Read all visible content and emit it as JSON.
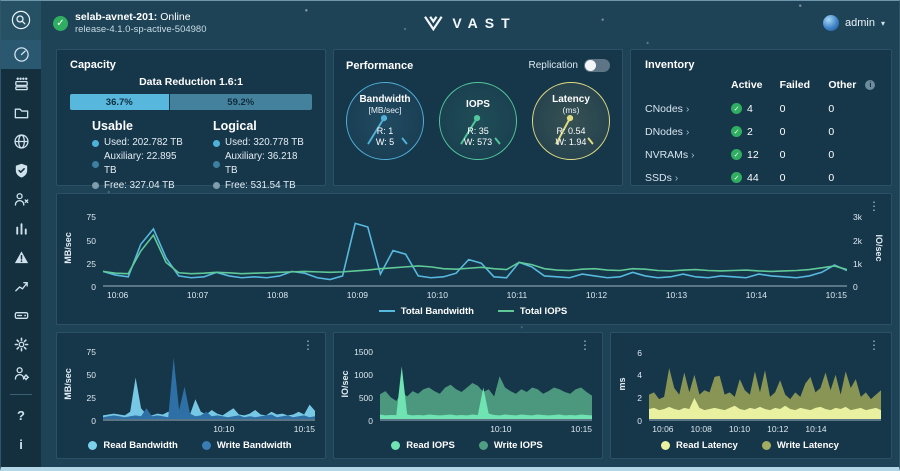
{
  "icons": {
    "kebab": "⋮",
    "caret": "▾",
    "check": "✓",
    "chevron": "›",
    "info": "i",
    "help": "?",
    "about": "i"
  },
  "topbar": {
    "cluster_name": "selab-avnet-201:",
    "cluster_status": "Online",
    "release": "release-4.1.0-sp-active-504980",
    "logo_text": "VAST",
    "user": "admin"
  },
  "capacity": {
    "title": "Capacity",
    "data_reduction_label": "Data Reduction 1.6:1",
    "bar": {
      "left_label": "36.7%",
      "left_value": 36.7,
      "left_color": "#58b7dc",
      "right_label": "59.2%",
      "right_value": 59.2,
      "right_color": "#44819d"
    },
    "usable": {
      "title": "Usable",
      "items": [
        {
          "label": "Used: 202.782 TB",
          "color": "#4fb0d8"
        },
        {
          "label": "Auxiliary: 22.895 TB",
          "color": "#3d7f9e"
        },
        {
          "label": "Free: 327.04 TB",
          "color": "#7e9cab"
        }
      ]
    },
    "logical": {
      "title": "Logical",
      "items": [
        {
          "label": "Used: 320.778 TB",
          "color": "#4fb0d8"
        },
        {
          "label": "Auxiliary: 36.218 TB",
          "color": "#3d7f9e"
        },
        {
          "label": "Free: 531.54 TB",
          "color": "#7e9cab"
        }
      ]
    }
  },
  "performance": {
    "title": "Performance",
    "replication_label": "Replication",
    "replication_state": "off",
    "gauges": [
      {
        "title": "Bandwidth",
        "subtitle": "[MB/sec]",
        "read": "R: 1",
        "write": "W: 5",
        "color": "#4fb0d8"
      },
      {
        "title": "IOPS",
        "subtitle": "",
        "read": "R: 35",
        "write": "W: 573",
        "color": "#52c79b"
      },
      {
        "title": "Latency",
        "subtitle": "(ms)",
        "read": "R: 0.54",
        "write": "W: 1.94",
        "color": "#e0dc82"
      }
    ]
  },
  "inventory": {
    "title": "Inventory",
    "columns": [
      "Active",
      "Failed",
      "Other"
    ],
    "rows": [
      {
        "label": "CNodes",
        "active": "4",
        "failed": "0",
        "other": "0"
      },
      {
        "label": "DNodes",
        "active": "2",
        "failed": "0",
        "other": "0"
      },
      {
        "label": "NVRAMs",
        "active": "12",
        "failed": "0",
        "other": "0"
      },
      {
        "label": "SSDs",
        "active": "44",
        "failed": "0",
        "other": "0"
      }
    ]
  },
  "chart_data": [
    {
      "id": "main",
      "type": "line",
      "title": "Total Bandwidth / Total IOPS over time",
      "ylabel_left": "MB/sec",
      "ylabel_right": "IO/sec",
      "yticks_left": [
        "75",
        "50",
        "25",
        "0"
      ],
      "yticks_right": [
        "3k",
        "2k",
        "1k",
        "0"
      ],
      "ylim_left": [
        0,
        85
      ],
      "ylim_right": [
        0,
        3400
      ],
      "grid": false,
      "legend_position": "bottom",
      "xticks": [
        "10:06",
        "10:07",
        "10:08",
        "10:09",
        "10:10",
        "10:11",
        "10:12",
        "10:13",
        "10:14",
        "10:15"
      ],
      "series": [
        {
          "name": "Total Bandwidth",
          "color": "#56b9dd",
          "axis": "left",
          "values": [
            15,
            11,
            9,
            45,
            62,
            30,
            10,
            8,
            9,
            14,
            10,
            8,
            9,
            8,
            10,
            15,
            13,
            8,
            6,
            10,
            68,
            64,
            12,
            38,
            34,
            10,
            8,
            9,
            13,
            28,
            24,
            9,
            8,
            25,
            20,
            10,
            9,
            8,
            12,
            10,
            8,
            9,
            14,
            10,
            8,
            9,
            12,
            9,
            8,
            10,
            9,
            8,
            12,
            10,
            9,
            8,
            10,
            14,
            22,
            16
          ]
        },
        {
          "name": "Total IOPS",
          "color": "#5fc998",
          "axis": "right",
          "values": [
            600,
            520,
            500,
            1500,
            2200,
            1000,
            540,
            500,
            520,
            560,
            540,
            500,
            520,
            540,
            560,
            580,
            600,
            580,
            560,
            580,
            620,
            660,
            720,
            760,
            800,
            840,
            800,
            720,
            700,
            740,
            780,
            720,
            680,
            1000,
            900,
            720,
            660,
            640,
            700,
            720,
            660,
            640,
            720,
            700,
            640,
            620,
            660,
            680,
            640,
            620,
            640,
            660,
            620,
            600,
            620,
            640,
            680,
            760,
            840,
            680
          ]
        }
      ]
    },
    {
      "id": "bandwidth",
      "type": "area",
      "title": "Read/Write Bandwidth",
      "ylabel": "MB/sec",
      "yticks": [
        "75",
        "50",
        "25",
        "0"
      ],
      "ylim": [
        0,
        80
      ],
      "xticks": [
        {
          "label": "10:10",
          "pos": 57
        },
        {
          "label": "10:15",
          "pos": 95
        }
      ],
      "series": [
        {
          "name": "Read Bandwidth",
          "color": "#7cd1ec",
          "opacity": 0.95,
          "values": [
            4,
            5,
            6,
            5,
            4,
            8,
            46,
            12,
            5,
            4,
            6,
            5,
            8,
            5,
            4,
            6,
            5,
            22,
            8,
            5,
            10,
            6,
            4,
            8,
            12,
            5,
            4,
            6,
            10,
            5,
            4,
            8,
            5,
            6,
            4,
            5,
            8,
            5,
            16,
            9
          ]
        },
        {
          "name": "Write Bandwidth",
          "color": "#2e6fa5",
          "opacity": 1,
          "values": [
            2,
            3,
            4,
            3,
            2,
            3,
            4,
            3,
            12,
            3,
            4,
            3,
            2,
            68,
            10,
            36,
            6,
            3,
            4,
            8,
            3,
            4,
            3,
            2,
            3,
            4,
            2,
            3,
            2,
            3,
            4,
            5,
            2,
            3,
            4,
            2,
            3,
            4,
            2,
            3
          ]
        }
      ]
    },
    {
      "id": "iops",
      "type": "area",
      "title": "Read/Write IOPS",
      "ylabel": "IO/sec",
      "yticks": [
        "1500",
        "1000",
        "500",
        "0"
      ],
      "ylim": [
        0,
        1600
      ],
      "xticks": [
        {
          "label": "10:10",
          "pos": 57
        },
        {
          "label": "10:15",
          "pos": 95
        }
      ],
      "series": [
        {
          "name": "Write IOPS",
          "color": "#4f9e82",
          "opacity": 0.95,
          "values": [
            550,
            620,
            480,
            400,
            600,
            500,
            620,
            560,
            660,
            700,
            620,
            560,
            700,
            760,
            660,
            600,
            700,
            800,
            740,
            600,
            660,
            500,
            950,
            700,
            620,
            560,
            660,
            600,
            700,
            660,
            560,
            620,
            700,
            660,
            600,
            560,
            660,
            700,
            600,
            520
          ]
        },
        {
          "name": "Read IOPS",
          "color": "#6fe3b2",
          "opacity": 1,
          "values": [
            100,
            80,
            90,
            85,
            1170,
            100,
            80,
            90,
            80,
            100,
            90,
            80,
            90,
            100,
            80,
            90,
            80,
            100,
            90,
            700,
            120,
            90,
            80,
            100,
            90,
            80,
            100,
            90,
            80,
            100,
            90,
            80,
            90,
            100,
            80,
            90,
            80,
            100,
            90,
            80
          ]
        }
      ]
    },
    {
      "id": "latency",
      "type": "area",
      "title": "Read/Write Latency",
      "ylabel": "ms",
      "yticks": [
        "6",
        "4",
        "2",
        "0"
      ],
      "ylim": [
        0,
        6.5
      ],
      "xticks": [
        {
          "label": "10:06",
          "pos": 6
        },
        {
          "label": "10:08",
          "pos": 22.5
        },
        {
          "label": "10:10",
          "pos": 39
        },
        {
          "label": "10:12",
          "pos": 55.5
        },
        {
          "label": "10:14",
          "pos": 72
        }
      ],
      "series": [
        {
          "name": "Write Latency",
          "color": "#8e9b55",
          "opacity": 0.95,
          "values": [
            2.2,
            2.4,
            1.8,
            2.0,
            4.6,
            2.8,
            2.2,
            4.2,
            2.4,
            4.0,
            2.2,
            2.6,
            2.4,
            3.8,
            3.9,
            2.2,
            2.4,
            2.0,
            3.6,
            2.6,
            2.2,
            4.3,
            2.4,
            4.4,
            2.0,
            2.4,
            3.5,
            2.2,
            1.8,
            2.4,
            2.0,
            3.2,
            3.8,
            2.4,
            2.8,
            4.2,
            2.6,
            4.0,
            2.2,
            4.3,
            2.8,
            3.6,
            2.0,
            2.4,
            1.8,
            2.2,
            2.6
          ]
        },
        {
          "name": "Read Latency",
          "color": "#e9f0a0",
          "opacity": 1,
          "values": [
            0.9,
            1.0,
            0.8,
            0.9,
            1.1,
            0.9,
            0.8,
            1.0,
            0.9,
            1.9,
            1.0,
            0.8,
            0.9,
            1.0,
            0.9,
            0.8,
            1.0,
            1.2,
            0.9,
            0.8,
            1.0,
            0.9,
            1.1,
            0.9,
            0.8,
            1.0,
            0.9,
            1.2,
            0.9,
            0.8,
            1.0,
            0.9,
            0.8,
            1.0,
            1.1,
            0.9,
            0.8,
            1.0,
            0.9,
            1.1,
            0.8,
            0.9,
            1.0,
            0.8,
            0.9,
            1.0,
            0.8
          ]
        }
      ]
    }
  ],
  "legends": {
    "main": [
      {
        "label": "Total Bandwidth",
        "color": "#56b9dd"
      },
      {
        "label": "Total IOPS",
        "color": "#5fc998"
      }
    ],
    "bandwidth": [
      {
        "label": "Read Bandwidth",
        "color": "#7cd1ec"
      },
      {
        "label": "Write Bandwidth",
        "color": "#3a7db2"
      }
    ],
    "iops": [
      {
        "label": "Read IOPS",
        "color": "#6fe3b2"
      },
      {
        "label": "Write IOPS",
        "color": "#4f9e82"
      }
    ],
    "latency": [
      {
        "label": "Read Latency",
        "color": "#e9f0a0"
      },
      {
        "label": "Write Latency",
        "color": "#a3ae62"
      }
    ]
  }
}
